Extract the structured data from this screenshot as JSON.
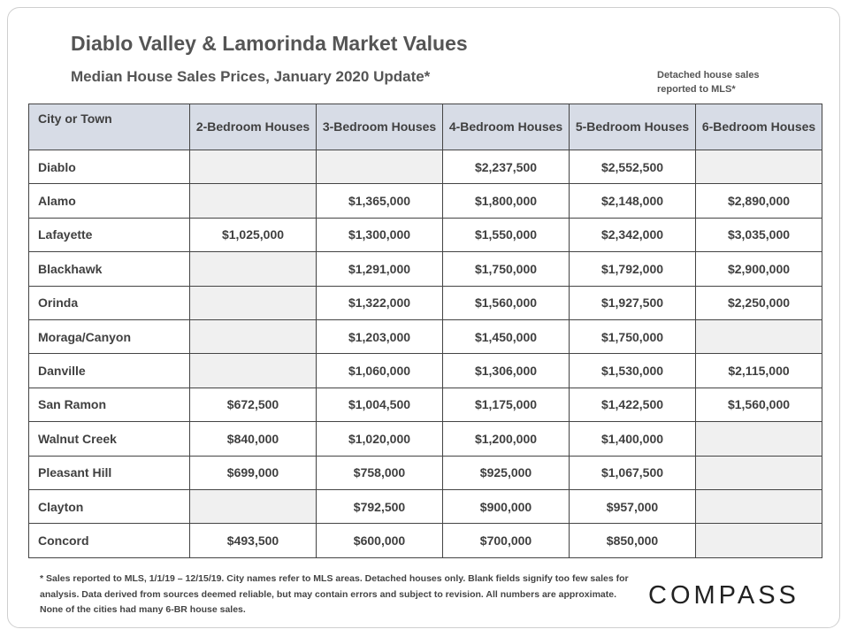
{
  "title": "Diablo Valley & Lamorinda Market Values",
  "subtitle": "Median House Sales Prices, January 2020 Update*",
  "note": "Detached house sales reported to MLS*",
  "table": {
    "headers": [
      "City or Town",
      "2-Bedroom Houses",
      "3-Bedroom Houses",
      "4-Bedroom Houses",
      "5-Bedroom Houses",
      "6-Bedroom Houses"
    ],
    "rows": [
      {
        "city": "Diablo",
        "values": [
          "",
          "",
          "$2,237,500",
          "$2,552,500",
          ""
        ]
      },
      {
        "city": "Alamo",
        "values": [
          "",
          "$1,365,000",
          "$1,800,000",
          "$2,148,000",
          "$2,890,000"
        ]
      },
      {
        "city": "Lafayette",
        "values": [
          "$1,025,000",
          "$1,300,000",
          "$1,550,000",
          "$2,342,000",
          "$3,035,000"
        ]
      },
      {
        "city": "Blackhawk",
        "values": [
          "",
          "$1,291,000",
          "$1,750,000",
          "$1,792,000",
          "$2,900,000"
        ]
      },
      {
        "city": "Orinda",
        "values": [
          "",
          "$1,322,000",
          "$1,560,000",
          "$1,927,500",
          "$2,250,000"
        ]
      },
      {
        "city": "Moraga/Canyon",
        "values": [
          "",
          "$1,203,000",
          "$1,450,000",
          "$1,750,000",
          ""
        ]
      },
      {
        "city": "Danville",
        "values": [
          "",
          "$1,060,000",
          "$1,306,000",
          "$1,530,000",
          "$2,115,000"
        ]
      },
      {
        "city": "San Ramon",
        "values": [
          "$672,500",
          "$1,004,500",
          "$1,175,000",
          "$1,422,500",
          "$1,560,000"
        ]
      },
      {
        "city": "Walnut  Creek",
        "values": [
          "$840,000",
          "$1,020,000",
          "$1,200,000",
          "$1,400,000",
          ""
        ]
      },
      {
        "city": "Pleasant Hill",
        "values": [
          "$699,000",
          "$758,000",
          "$925,000",
          "$1,067,500",
          ""
        ]
      },
      {
        "city": "Clayton",
        "values": [
          "",
          "$792,500",
          "$900,000",
          "$957,000",
          ""
        ]
      },
      {
        "city": "Concord",
        "values": [
          "$493,500",
          "$600,000",
          "$700,000",
          "$850,000",
          ""
        ]
      }
    ]
  },
  "footnote": "* Sales reported to MLS, 1/1/19 – 12/15/19. City names refer to MLS areas. Detached houses only. Blank fields signify too few sales for analysis. Data derived from sources deemed reliable, but may contain errors and subject to revision. All numbers are approximate.  None of the cities had many 6-BR house sales.",
  "logo": "COMPASS"
}
